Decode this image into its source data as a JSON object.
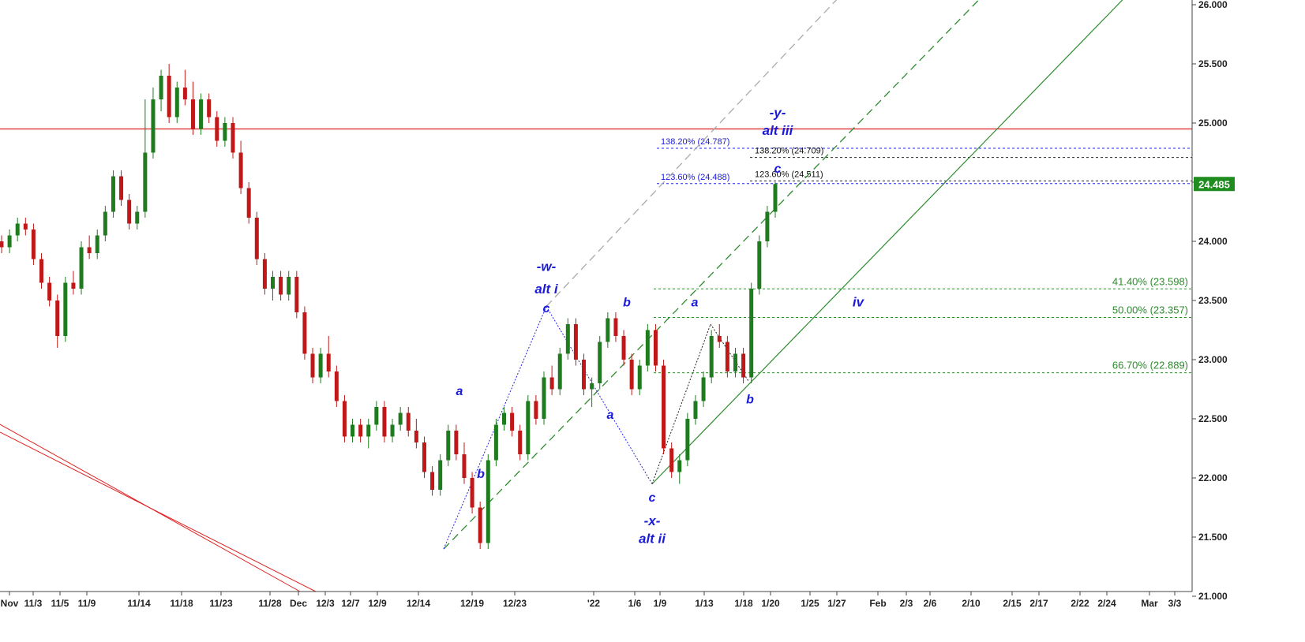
{
  "chart_data": {
    "type": "candlestick",
    "y_axis": {
      "position": "right",
      "ylim": [
        20.8,
        26.15
      ],
      "ticks": [
        "21.000",
        "21.500",
        "22.000",
        "22.500",
        "23.000",
        "23.500",
        "24.000",
        "24.500",
        "25.000",
        "25.500",
        "26.000"
      ],
      "tick_values": [
        21.0,
        21.5,
        22.0,
        22.5,
        23.0,
        23.5,
        24.0,
        24.5,
        25.0,
        25.5,
        26.0
      ]
    },
    "x_axis": {
      "ticks": [
        "Nov",
        "11/3",
        "11/5",
        "11/9",
        "11/14",
        "11/18",
        "11/23",
        "11/28",
        "Dec",
        "12/3",
        "12/7",
        "12/9",
        "12/14",
        "12/19",
        "12/23",
        "'22",
        "1/6",
        "1/9",
        "1/13",
        "1/18",
        "1/20",
        "1/25",
        "1/27",
        "Feb",
        "2/3",
        "2/6",
        "2/10",
        "2/15",
        "2/17",
        "2/22",
        "2/24",
        "Mar",
        "3/3"
      ]
    },
    "last_price": "24.485",
    "colors": {
      "up": "#1e7b1e",
      "down": "#c01818",
      "price_tag": "#1e8c1e",
      "wave": "#1a1adb",
      "fib_green": "#2e8b2e",
      "resistance": "#e02020"
    },
    "resistance_level": 24.95,
    "fib_levels": [
      {
        "label": "138.20% (24.787)",
        "value": 24.787,
        "color": "blue"
      },
      {
        "label": "138.20% (24.709)",
        "value": 24.709,
        "color": "black"
      },
      {
        "label": "123.60% (24.511)",
        "value": 24.511,
        "color": "black"
      },
      {
        "label": "123.60% (24.488)",
        "value": 24.488,
        "color": "blue"
      },
      {
        "label": "41.40% (23.598)",
        "value": 23.598,
        "color": "green"
      },
      {
        "label": "50.00% (23.357)",
        "value": 23.357,
        "color": "green"
      },
      {
        "label": "66.70% (22.889)",
        "value": 22.889,
        "color": "green"
      }
    ],
    "wave_labels": [
      {
        "text": "-w-",
        "x_date": "12/29",
        "y": 23.75
      },
      {
        "text": "alt i",
        "x_date": "12/29",
        "y": 23.56
      },
      {
        "text": "c",
        "x_date": "12/29",
        "y": 23.4
      },
      {
        "text": "a",
        "x_date": "12/18",
        "y": 22.7
      },
      {
        "text": "b",
        "x_date": "12/19",
        "y": 22.0
      },
      {
        "text": "a",
        "x_date": "1/3",
        "y": 22.5
      },
      {
        "text": "b",
        "x_date": "1/5",
        "y": 23.45
      },
      {
        "text": "c",
        "x_date": "1/7",
        "y": 21.8
      },
      {
        "text": "-x-",
        "x_date": "1/7",
        "y": 21.6
      },
      {
        "text": "alt ii",
        "x_date": "1/7",
        "y": 21.45
      },
      {
        "text": "a",
        "x_date": "1/12",
        "y": 23.45
      },
      {
        "text": "b",
        "x_date": "1/18",
        "y": 22.63
      },
      {
        "text": "-y-",
        "x_date": "1/19",
        "y": 25.05
      },
      {
        "text": "alt iii",
        "x_date": "1/19",
        "y": 24.9
      },
      {
        "text": "c",
        "x_date": "1/19",
        "y": 24.58
      },
      {
        "text": "iv",
        "x_date": "1/29",
        "y": 23.45
      }
    ],
    "candles": [
      [
        24.0,
        24.05,
        23.9,
        23.95
      ],
      [
        23.95,
        24.1,
        23.9,
        24.05
      ],
      [
        24.05,
        24.2,
        24.0,
        24.15
      ],
      [
        24.15,
        24.2,
        24.05,
        24.1
      ],
      [
        24.1,
        24.15,
        23.8,
        23.85
      ],
      [
        23.85,
        23.9,
        23.6,
        23.65
      ],
      [
        23.65,
        23.7,
        23.45,
        23.5
      ],
      [
        23.5,
        23.55,
        23.1,
        23.2
      ],
      [
        23.2,
        23.7,
        23.15,
        23.65
      ],
      [
        23.65,
        23.75,
        23.55,
        23.6
      ],
      [
        23.6,
        24.0,
        23.55,
        23.95
      ],
      [
        23.95,
        24.05,
        23.85,
        23.9
      ],
      [
        23.9,
        24.1,
        23.85,
        24.05
      ],
      [
        24.05,
        24.3,
        24.0,
        24.25
      ],
      [
        24.25,
        24.6,
        24.2,
        24.55
      ],
      [
        24.55,
        24.6,
        24.3,
        24.35
      ],
      [
        24.35,
        24.4,
        24.1,
        24.15
      ],
      [
        24.15,
        24.3,
        24.1,
        24.25
      ],
      [
        24.25,
        25.2,
        24.2,
        24.75
      ],
      [
        24.75,
        25.3,
        24.7,
        25.2
      ],
      [
        25.2,
        25.45,
        25.1,
        25.4
      ],
      [
        25.4,
        25.5,
        25.0,
        25.05
      ],
      [
        25.05,
        25.35,
        25.0,
        25.3
      ],
      [
        25.3,
        25.45,
        25.15,
        25.2
      ],
      [
        25.2,
        25.35,
        24.9,
        24.95
      ],
      [
        24.95,
        25.25,
        24.9,
        25.2
      ],
      [
        25.2,
        25.25,
        25.0,
        25.05
      ],
      [
        25.05,
        25.1,
        24.8,
        24.85
      ],
      [
        24.85,
        25.05,
        24.8,
        25.0
      ],
      [
        25.0,
        25.05,
        24.7,
        24.75
      ],
      [
        24.75,
        24.85,
        24.4,
        24.45
      ],
      [
        24.45,
        24.5,
        24.15,
        24.2
      ],
      [
        24.2,
        24.25,
        23.8,
        23.85
      ],
      [
        23.85,
        23.9,
        23.55,
        23.6
      ],
      [
        23.6,
        23.75,
        23.5,
        23.7
      ],
      [
        23.7,
        23.75,
        23.5,
        23.55
      ],
      [
        23.55,
        23.75,
        23.5,
        23.7
      ],
      [
        23.7,
        23.75,
        23.35,
        23.4
      ],
      [
        23.4,
        23.45,
        23.0,
        23.05
      ],
      [
        23.05,
        23.1,
        22.8,
        22.85
      ],
      [
        22.85,
        23.1,
        22.8,
        23.05
      ],
      [
        23.05,
        23.2,
        22.85,
        22.9
      ],
      [
        22.9,
        22.95,
        22.6,
        22.65
      ],
      [
        22.65,
        22.7,
        22.3,
        22.35
      ],
      [
        22.35,
        22.5,
        22.3,
        22.45
      ],
      [
        22.45,
        22.5,
        22.3,
        22.35
      ],
      [
        22.35,
        22.5,
        22.25,
        22.45
      ],
      [
        22.45,
        22.65,
        22.4,
        22.6
      ],
      [
        22.6,
        22.65,
        22.3,
        22.35
      ],
      [
        22.35,
        22.5,
        22.3,
        22.45
      ],
      [
        22.45,
        22.6,
        22.4,
        22.55
      ],
      [
        22.55,
        22.6,
        22.35,
        22.4
      ],
      [
        22.4,
        22.5,
        22.25,
        22.3
      ],
      [
        22.3,
        22.35,
        22.0,
        22.05
      ],
      [
        22.05,
        22.1,
        21.85,
        21.9
      ],
      [
        21.9,
        22.2,
        21.85,
        22.15
      ],
      [
        22.15,
        22.45,
        22.1,
        22.4
      ],
      [
        22.4,
        22.45,
        22.15,
        22.2
      ],
      [
        22.2,
        22.3,
        21.95,
        22.0
      ],
      [
        22.0,
        22.05,
        21.7,
        21.75
      ],
      [
        21.75,
        21.8,
        21.4,
        21.45
      ],
      [
        21.45,
        22.2,
        21.4,
        22.15
      ],
      [
        22.15,
        22.5,
        22.1,
        22.45
      ],
      [
        22.45,
        22.6,
        22.4,
        22.55
      ],
      [
        22.55,
        22.6,
        22.35,
        22.4
      ],
      [
        22.4,
        22.45,
        22.15,
        22.2
      ],
      [
        22.2,
        22.7,
        22.15,
        22.65
      ],
      [
        22.65,
        22.7,
        22.45,
        22.5
      ],
      [
        22.5,
        22.9,
        22.45,
        22.85
      ],
      [
        22.85,
        22.95,
        22.7,
        22.75
      ],
      [
        22.75,
        23.1,
        22.7,
        23.05
      ],
      [
        23.05,
        23.35,
        23.0,
        23.3
      ],
      [
        23.3,
        23.35,
        22.95,
        23.0
      ],
      [
        23.0,
        23.05,
        22.7,
        22.75
      ],
      [
        22.75,
        22.85,
        22.6,
        22.8
      ],
      [
        22.8,
        23.2,
        22.75,
        23.15
      ],
      [
        23.15,
        23.4,
        23.1,
        23.35
      ],
      [
        23.35,
        23.4,
        23.15,
        23.2
      ],
      [
        23.2,
        23.25,
        22.95,
        23.0
      ],
      [
        23.0,
        23.05,
        22.7,
        22.75
      ],
      [
        22.75,
        23.0,
        22.7,
        22.95
      ],
      [
        22.95,
        23.3,
        22.9,
        23.25
      ],
      [
        23.25,
        23.3,
        22.9,
        22.95
      ],
      [
        22.95,
        23.0,
        22.2,
        22.25
      ],
      [
        22.25,
        22.3,
        22.0,
        22.05
      ],
      [
        22.05,
        22.2,
        21.95,
        22.15
      ],
      [
        22.15,
        22.55,
        22.1,
        22.5
      ],
      [
        22.5,
        22.7,
        22.45,
        22.65
      ],
      [
        22.65,
        22.9,
        22.6,
        22.85
      ],
      [
        22.85,
        23.25,
        22.8,
        23.2
      ],
      [
        23.2,
        23.3,
        23.1,
        23.15
      ],
      [
        23.15,
        23.2,
        22.85,
        22.9
      ],
      [
        22.9,
        23.1,
        22.85,
        23.05
      ],
      [
        23.05,
        23.1,
        22.8,
        22.85
      ],
      [
        22.85,
        23.65,
        22.8,
        23.6
      ],
      [
        23.6,
        24.05,
        23.55,
        24.0
      ],
      [
        24.0,
        24.3,
        23.95,
        24.25
      ],
      [
        24.25,
        24.5,
        24.2,
        24.485
      ]
    ]
  }
}
